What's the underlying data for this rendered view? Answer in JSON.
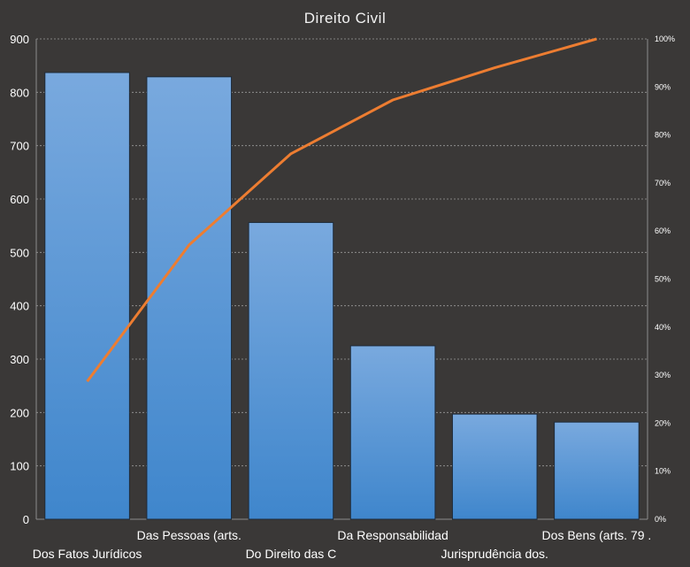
{
  "chart_data": {
    "type": "bar",
    "title": "Direito Civil",
    "categories": [
      "Dos Fatos Jurídicos",
      "Das Pessoas (arts.",
      "Do Direito das C",
      "Da Responsabilidad",
      "Jurisprudência dos.",
      "Dos Bens (arts. 79 ."
    ],
    "series": [
      {
        "type": "bar",
        "values": [
          837,
          829,
          556,
          325,
          197,
          182
        ]
      },
      {
        "type": "line",
        "axis": "right",
        "values": [
          28.7,
          57.1,
          76.1,
          87.3,
          94.0,
          100.0
        ]
      }
    ],
    "ylim": [
      0,
      900
    ],
    "yticks": [
      "0",
      "100",
      "200",
      "300",
      "400",
      "500",
      "600",
      "700",
      "800",
      "900"
    ],
    "y2lim": [
      0,
      100
    ],
    "y2ticks": [
      "0%",
      "10%",
      "20%",
      "30%",
      "40%",
      "50%",
      "60%",
      "70%",
      "80%",
      "90%",
      "100%"
    ],
    "grid": true,
    "legend": "none",
    "colors": {
      "background": "#3a3837",
      "bar_top": "#79a9de",
      "bar_bottom": "#3f86cc",
      "line": "#ed7d31",
      "text": "#ffffff"
    }
  }
}
